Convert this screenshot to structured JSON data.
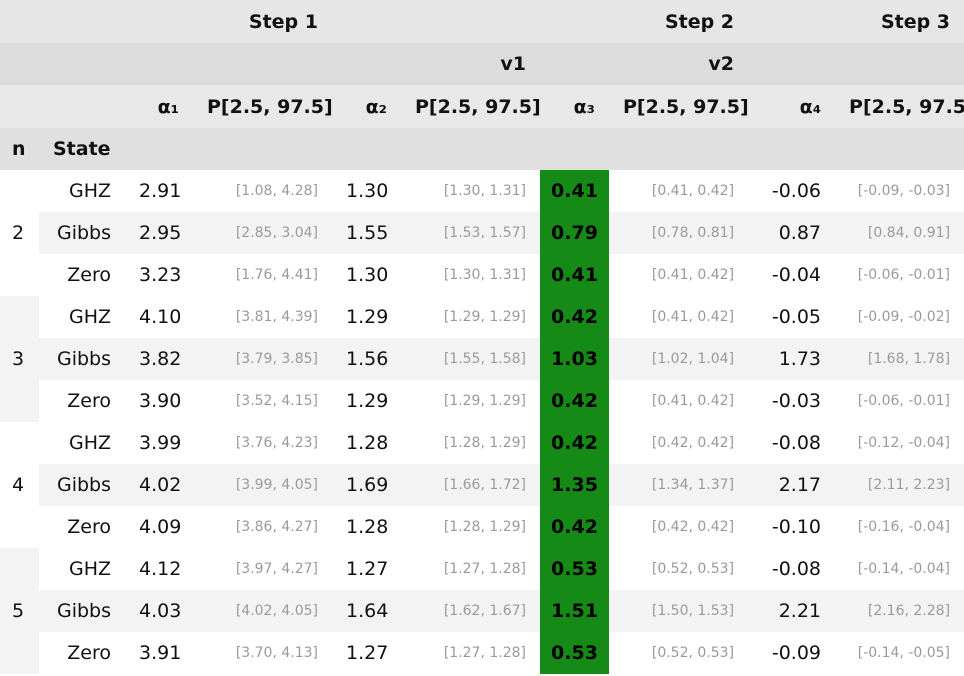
{
  "headers": {
    "step1": "Step 1",
    "step2": "Step 2",
    "step3": "Step 3",
    "v1": "v1",
    "v2": "v2",
    "a1": "α₁",
    "a2": "α₂",
    "a3": "α₃",
    "a4": "α₄",
    "p": "P[2.5, 97.5]",
    "n": "n",
    "state": "State"
  },
  "highlight_color": "#168a16",
  "groups": [
    {
      "n": "2",
      "rows": [
        {
          "state": "GHZ",
          "a1": "2.91",
          "p1": "[1.08, 4.28]",
          "a2": "1.30",
          "p2": "[1.30, 1.31]",
          "a3": "0.41",
          "p3": "[0.41, 0.42]",
          "a4": "-0.06",
          "p4": "[-0.09, -0.03]"
        },
        {
          "state": "Gibbs",
          "a1": "2.95",
          "p1": "[2.85, 3.04]",
          "a2": "1.55",
          "p2": "[1.53, 1.57]",
          "a3": "0.79",
          "p3": "[0.78, 0.81]",
          "a4": "0.87",
          "p4": "[0.84, 0.91]"
        },
        {
          "state": "Zero",
          "a1": "3.23",
          "p1": "[1.76, 4.41]",
          "a2": "1.30",
          "p2": "[1.30, 1.31]",
          "a3": "0.41",
          "p3": "[0.41, 0.42]",
          "a4": "-0.04",
          "p4": "[-0.06, -0.01]"
        }
      ]
    },
    {
      "n": "3",
      "rows": [
        {
          "state": "GHZ",
          "a1": "4.10",
          "p1": "[3.81, 4.39]",
          "a2": "1.29",
          "p2": "[1.29, 1.29]",
          "a3": "0.42",
          "p3": "[0.41, 0.42]",
          "a4": "-0.05",
          "p4": "[-0.09, -0.02]"
        },
        {
          "state": "Gibbs",
          "a1": "3.82",
          "p1": "[3.79, 3.85]",
          "a2": "1.56",
          "p2": "[1.55, 1.58]",
          "a3": "1.03",
          "p3": "[1.02, 1.04]",
          "a4": "1.73",
          "p4": "[1.68, 1.78]"
        },
        {
          "state": "Zero",
          "a1": "3.90",
          "p1": "[3.52, 4.15]",
          "a2": "1.29",
          "p2": "[1.29, 1.29]",
          "a3": "0.42",
          "p3": "[0.41, 0.42]",
          "a4": "-0.03",
          "p4": "[-0.06, -0.01]"
        }
      ]
    },
    {
      "n": "4",
      "rows": [
        {
          "state": "GHZ",
          "a1": "3.99",
          "p1": "[3.76, 4.23]",
          "a2": "1.28",
          "p2": "[1.28, 1.29]",
          "a3": "0.42",
          "p3": "[0.42, 0.42]",
          "a4": "-0.08",
          "p4": "[-0.12, -0.04]"
        },
        {
          "state": "Gibbs",
          "a1": "4.02",
          "p1": "[3.99, 4.05]",
          "a2": "1.69",
          "p2": "[1.66, 1.72]",
          "a3": "1.35",
          "p3": "[1.34, 1.37]",
          "a4": "2.17",
          "p4": "[2.11, 2.23]"
        },
        {
          "state": "Zero",
          "a1": "4.09",
          "p1": "[3.86, 4.27]",
          "a2": "1.28",
          "p2": "[1.28, 1.29]",
          "a3": "0.42",
          "p3": "[0.42, 0.42]",
          "a4": "-0.10",
          "p4": "[-0.16, -0.04]"
        }
      ]
    },
    {
      "n": "5",
      "rows": [
        {
          "state": "GHZ",
          "a1": "4.12",
          "p1": "[3.97, 4.27]",
          "a2": "1.27",
          "p2": "[1.27, 1.28]",
          "a3": "0.53",
          "p3": "[0.52, 0.53]",
          "a4": "-0.08",
          "p4": "[-0.14, -0.04]"
        },
        {
          "state": "Gibbs",
          "a1": "4.03",
          "p1": "[4.02, 4.05]",
          "a2": "1.64",
          "p2": "[1.62, 1.67]",
          "a3": "1.51",
          "p3": "[1.50, 1.53]",
          "a4": "2.21",
          "p4": "[2.16, 2.28]"
        },
        {
          "state": "Zero",
          "a1": "3.91",
          "p1": "[3.70, 4.13]",
          "a2": "1.27",
          "p2": "[1.27, 1.28]",
          "a3": "0.53",
          "p3": "[0.52, 0.53]",
          "a4": "-0.09",
          "p4": "[-0.14, -0.05]"
        }
      ]
    }
  ]
}
